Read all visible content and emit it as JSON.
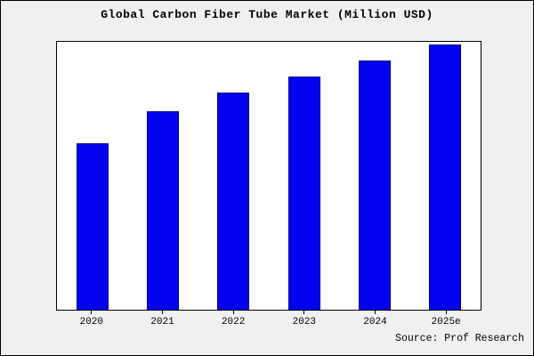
{
  "chart_data": {
    "type": "bar",
    "title": "Global Carbon Fiber Tube Market (Million USD)",
    "categories": [
      "2020",
      "2021",
      "2022",
      "2023",
      "2024",
      "2025e"
    ],
    "values": [
      62,
      74,
      81,
      87,
      93,
      99
    ],
    "xlabel": "",
    "ylabel": "",
    "ylim": [
      0,
      100
    ],
    "grid": false,
    "legend": false,
    "bar_color": "#0202ee",
    "bar_edge_color": "#00008b",
    "plot_background": "#ffffff",
    "figure_background": "#f0f0f0"
  },
  "source": "Source: Prof Research"
}
